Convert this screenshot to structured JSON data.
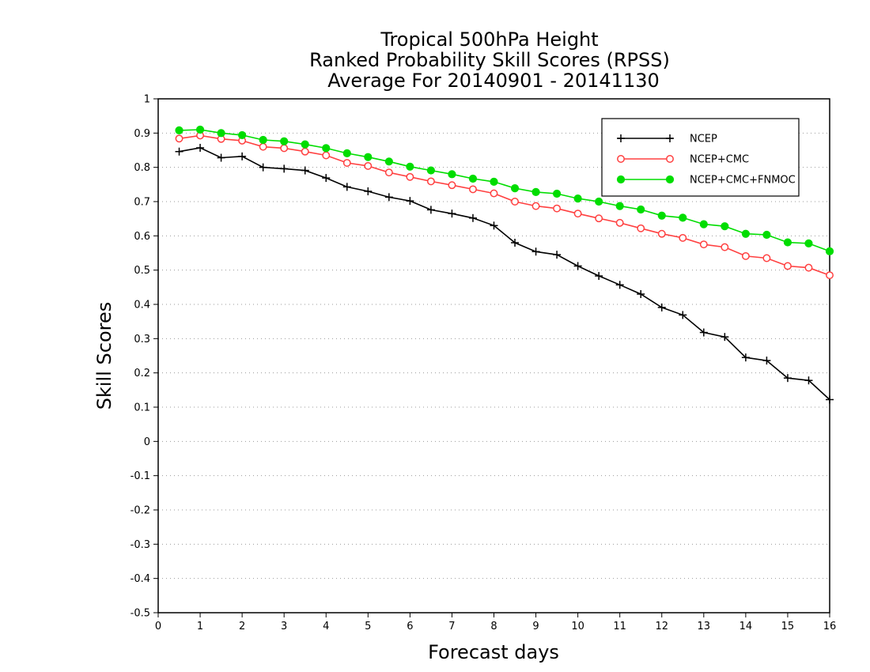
{
  "chart_data": {
    "type": "line",
    "title_lines": [
      "Tropical 500hPa Height",
      "Ranked Probability Skill Scores (RPSS)",
      "Average For 20140901 - 20141130"
    ],
    "xlabel": "Forecast days",
    "ylabel": "Skill Scores",
    "xlim": [
      0,
      16
    ],
    "ylim": [
      -0.5,
      1
    ],
    "x_ticks": [
      "0",
      "1",
      "2",
      "3",
      "4",
      "5",
      "6",
      "7",
      "8",
      "9",
      "10",
      "11",
      "12",
      "13",
      "14",
      "15",
      "16"
    ],
    "y_ticks": [
      "-0.5",
      "-0.4",
      "-0.3",
      "-0.2",
      "-0.1",
      "0",
      "0.1",
      "0.2",
      "0.3",
      "0.4",
      "0.5",
      "0.6",
      "0.7",
      "0.8",
      "0.9",
      "1"
    ],
    "grid": "horizontal dotted",
    "legend_position": "top-right",
    "x": [
      0.5,
      1,
      1.5,
      2,
      2.5,
      3,
      3.5,
      4,
      4.5,
      5,
      5.5,
      6,
      6.5,
      7,
      7.5,
      8,
      8.5,
      9,
      9.5,
      10,
      10.5,
      11,
      11.5,
      12,
      12.5,
      13,
      13.5,
      14,
      14.5,
      15,
      15.5,
      16
    ],
    "series": [
      {
        "name": "NCEP",
        "color": "#000000",
        "marker": "plus",
        "values": [
          0.846,
          0.857,
          0.828,
          0.832,
          0.8,
          0.796,
          0.791,
          0.769,
          0.743,
          0.73,
          0.713,
          0.702,
          0.676,
          0.665,
          0.652,
          0.63,
          0.58,
          0.554,
          0.545,
          0.512,
          0.483,
          0.457,
          0.43,
          0.391,
          0.369,
          0.318,
          0.305,
          0.245,
          0.236,
          0.185,
          0.178,
          0.122
        ]
      },
      {
        "name": "NCEP+CMC",
        "color": "#ff4040",
        "marker": "open-circle",
        "values": [
          0.884,
          0.893,
          0.883,
          0.878,
          0.86,
          0.856,
          0.846,
          0.835,
          0.813,
          0.804,
          0.785,
          0.772,
          0.759,
          0.748,
          0.736,
          0.724,
          0.7,
          0.687,
          0.68,
          0.665,
          0.651,
          0.638,
          0.622,
          0.606,
          0.594,
          0.575,
          0.567,
          0.541,
          0.535,
          0.512,
          0.507,
          0.485
        ]
      },
      {
        "name": "NCEP+CMC+FNMOC",
        "color": "#00dd00",
        "marker": "filled-circle",
        "values": [
          0.908,
          0.91,
          0.9,
          0.894,
          0.88,
          0.876,
          0.867,
          0.856,
          0.841,
          0.83,
          0.817,
          0.802,
          0.791,
          0.78,
          0.767,
          0.758,
          0.739,
          0.728,
          0.723,
          0.709,
          0.7,
          0.687,
          0.677,
          0.659,
          0.653,
          0.634,
          0.628,
          0.606,
          0.603,
          0.581,
          0.578,
          0.555
        ]
      }
    ]
  }
}
